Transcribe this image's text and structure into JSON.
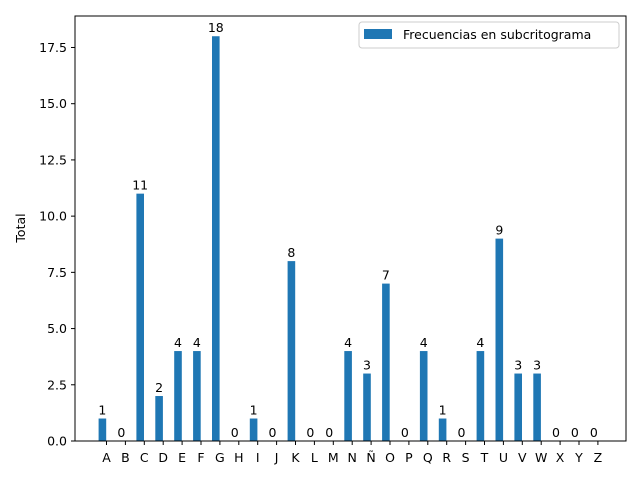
{
  "chart_data": {
    "type": "bar",
    "categories": [
      "A",
      "B",
      "C",
      "D",
      "E",
      "F",
      "G",
      "H",
      "I",
      "J",
      "K",
      "L",
      "M",
      "N",
      "Ñ",
      "O",
      "P",
      "Q",
      "R",
      "S",
      "T",
      "U",
      "V",
      "W",
      "X",
      "Y",
      "Z"
    ],
    "series": [
      {
        "name": "Frecuencias en subcritograma",
        "values": [
          1,
          0,
          11,
          2,
          4,
          4,
          18,
          0,
          1,
          0,
          8,
          0,
          0,
          4,
          3,
          7,
          0,
          4,
          1,
          0,
          4,
          9,
          3,
          3,
          0,
          0,
          0
        ]
      }
    ],
    "data_labels": [
      "1",
      "0",
      "11",
      "2",
      "4",
      "4",
      "18",
      "0",
      "1",
      "0",
      "8",
      "0",
      "0",
      "4",
      "3",
      "7",
      "0",
      "4",
      "1",
      "0",
      "4",
      "9",
      "3",
      "3",
      "0",
      "0",
      "0"
    ],
    "title": "",
    "xlabel": "",
    "ylabel": "Total",
    "ylim": [
      0,
      18.9
    ],
    "yticks": [
      0,
      2.5,
      5,
      7.5,
      10,
      12.5,
      15,
      17.5
    ],
    "ytick_labels": [
      "0.0",
      "2.5",
      "5.0",
      "7.5",
      "10.0",
      "12.5",
      "15.0",
      "17.5"
    ],
    "grid": false,
    "legend_position": "top-right",
    "bar_color": "#1f77b4"
  }
}
